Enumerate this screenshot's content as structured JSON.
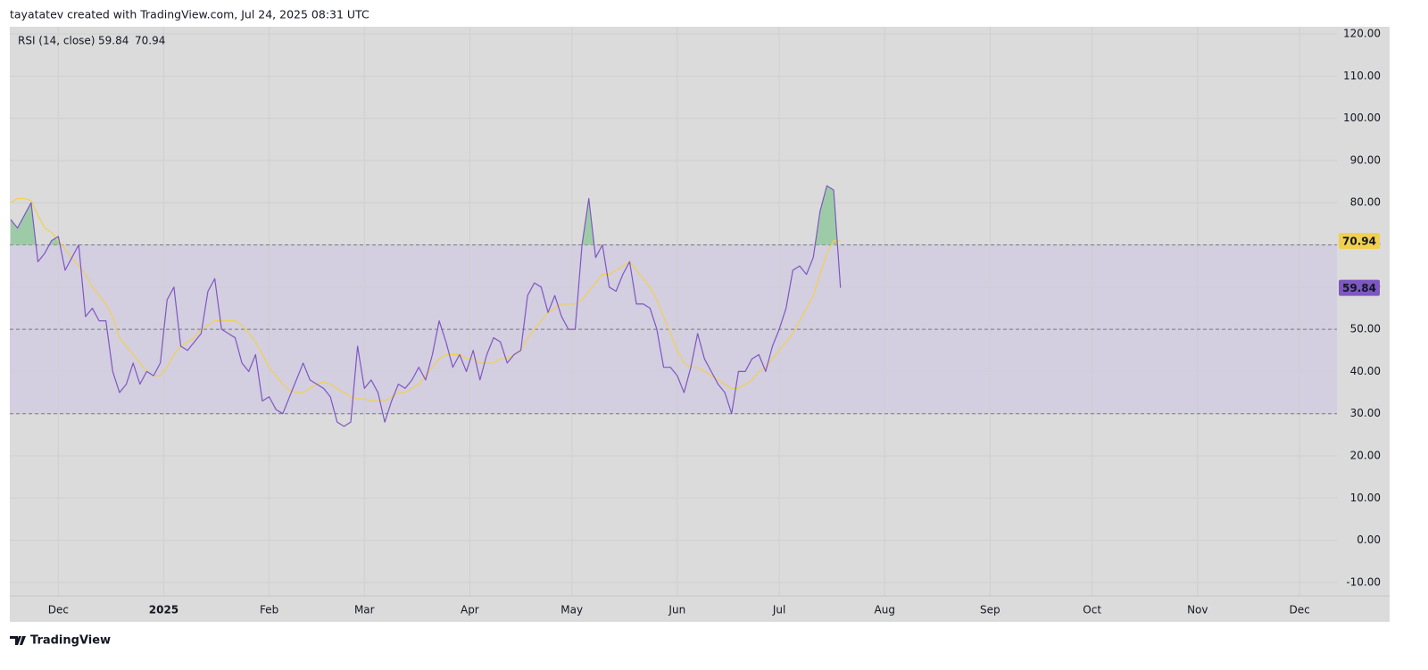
{
  "header": "tayatatev created with TradingView.com, Jul 24, 2025 08:31 UTC",
  "footer": "TradingView",
  "chart_data": {
    "type": "line",
    "indicator": "RSI (14, close)",
    "x": [
      0,
      2,
      4,
      6,
      8,
      10,
      12,
      14,
      16,
      18,
      20,
      22,
      24,
      26,
      28,
      30,
      32,
      34,
      36,
      38,
      40,
      42,
      44,
      46,
      48,
      50,
      52,
      54,
      56,
      58,
      60,
      62,
      64,
      66,
      68,
      70,
      72,
      74,
      76,
      78,
      80,
      82,
      84,
      86,
      88,
      90,
      92,
      94,
      96,
      98,
      100,
      102,
      104,
      106,
      108,
      110,
      112,
      114,
      116,
      118,
      120,
      122,
      124,
      126,
      128,
      130,
      132,
      134,
      136,
      138,
      140,
      142,
      144,
      146,
      148,
      150,
      152,
      154,
      156,
      158,
      160,
      162,
      164,
      166,
      168,
      170,
      172,
      174,
      176,
      178,
      180,
      182,
      184,
      186,
      188,
      190,
      192,
      194,
      196,
      198,
      200,
      202,
      204,
      206,
      208,
      210,
      212,
      214,
      216,
      218,
      220,
      222,
      224,
      226,
      228,
      230,
      232,
      234,
      236,
      238,
      240,
      242,
      244
    ],
    "series": [
      {
        "color": "#7e57c2",
        "values": [
          76,
          74,
          77,
          80,
          66,
          68,
          71,
          72,
          64,
          67,
          70,
          53,
          55,
          52,
          52,
          40,
          35,
          37,
          42,
          37,
          40,
          39,
          42,
          57,
          60,
          46,
          45,
          47,
          49,
          59,
          62,
          50,
          49,
          48,
          42,
          40,
          44,
          33,
          34,
          31,
          30,
          34,
          38,
          42,
          38,
          37,
          36,
          34,
          28,
          27,
          28,
          46,
          36,
          38,
          35,
          28,
          33,
          37,
          36,
          38,
          41,
          38,
          44,
          52,
          47,
          41,
          44,
          40,
          45,
          38,
          44,
          48,
          47,
          42,
          44,
          45,
          58,
          61,
          60,
          54,
          58,
          53,
          50,
          50,
          70,
          81,
          67,
          70,
          60,
          59,
          63,
          66,
          56,
          56,
          55,
          50,
          41,
          41,
          39,
          35,
          41,
          49,
          43,
          40,
          37,
          35,
          30,
          40,
          40,
          43,
          44,
          40,
          46,
          50,
          55,
          64,
          65,
          63,
          67,
          78,
          84,
          83,
          59.84
        ]
      },
      {
        "color": "#f2d04f",
        "values": [
          80,
          81,
          81,
          80.5,
          77,
          74,
          73,
          71,
          69,
          67,
          65,
          63,
          60,
          58,
          56,
          53,
          48,
          46,
          44,
          42,
          40,
          39,
          39,
          41,
          44,
          46,
          47,
          48,
          50,
          51,
          52,
          52,
          52,
          52,
          51,
          49,
          47,
          44,
          41,
          39,
          37,
          35.5,
          35,
          35,
          36,
          37,
          37.5,
          37,
          36,
          35,
          34,
          33.5,
          33.5,
          33,
          33,
          33,
          34,
          35,
          35,
          36,
          37,
          39,
          41,
          43,
          44,
          44,
          44,
          43,
          43,
          42,
          42,
          42,
          43,
          43,
          44,
          45,
          48,
          50,
          52,
          54,
          55,
          56,
          56,
          56,
          57,
          59,
          61,
          63,
          63,
          64,
          65,
          66,
          64,
          62,
          60,
          57,
          53,
          49,
          45,
          42,
          41,
          41,
          40,
          39,
          38,
          37,
          36,
          36,
          37,
          38,
          40,
          41,
          43,
          45,
          47,
          49,
          52,
          55,
          58,
          63,
          68,
          71,
          70.94
        ]
      }
    ],
    "band_levels": [
      30,
      50,
      70
    ],
    "band_color": "#d3cee0",
    "overbought_color": "#8fc79a",
    "background": "#dbdbdb",
    "xlim": [
      -0.26,
      390
    ],
    "xticks": [
      {
        "value": 14,
        "label": "Dec"
      },
      {
        "value": 45,
        "label": "2025"
      },
      {
        "value": 76,
        "label": "Feb"
      },
      {
        "value": 104,
        "label": "Mar"
      },
      {
        "value": 135,
        "label": "Apr"
      },
      {
        "value": 165,
        "label": "May"
      },
      {
        "value": 196,
        "label": "Jun"
      },
      {
        "value": 226,
        "label": "Jul"
      },
      {
        "value": 257,
        "label": "Aug"
      },
      {
        "value": 288,
        "label": "Sep"
      },
      {
        "value": 318,
        "label": "Oct"
      },
      {
        "value": 349,
        "label": "Nov"
      },
      {
        "value": 379,
        "label": "Dec"
      }
    ],
    "ylim": [
      -13.2,
      121.7
    ],
    "yticks": [
      {
        "value": 120,
        "label": "120.00"
      },
      {
        "value": 110,
        "label": "110.00"
      },
      {
        "value": 100,
        "label": "100.00"
      },
      {
        "value": 90,
        "label": "90.00"
      },
      {
        "value": 80,
        "label": "80.00"
      },
      {
        "value": 70,
        "label": "70.00"
      },
      {
        "value": 60,
        "label": "60.00"
      },
      {
        "value": 50,
        "label": "50.00"
      },
      {
        "value": 40,
        "label": "40.00"
      },
      {
        "value": 30,
        "label": "30.00"
      },
      {
        "value": 20,
        "label": "20.00"
      },
      {
        "value": 10,
        "label": "10.00"
      },
      {
        "value": 0,
        "label": "0.00"
      },
      {
        "value": -10,
        "label": "-10.00"
      }
    ],
    "grid": true
  }
}
